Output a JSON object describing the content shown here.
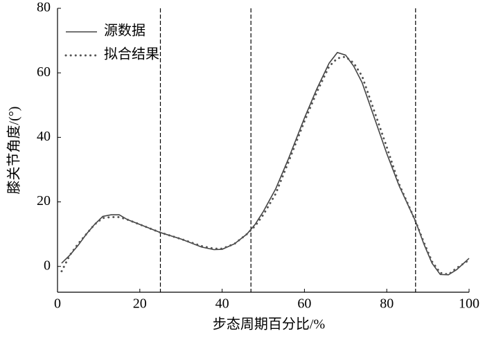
{
  "chart_data": {
    "type": "line",
    "xlabel": "步态周期百分比/%",
    "ylabel": "膝关节角度/(°)",
    "x": [
      1,
      3,
      5,
      7,
      9,
      11,
      13,
      15,
      17,
      20,
      25,
      30,
      35,
      38,
      40,
      43,
      46,
      48,
      50,
      53,
      56,
      60,
      63,
      66,
      68,
      70,
      72,
      74,
      77,
      80,
      83,
      87,
      89,
      91,
      93,
      95,
      97,
      100
    ],
    "series": [
      {
        "name": "源数据",
        "color": "#444444",
        "style": "solid",
        "values": [
          1,
          3.5,
          6.5,
          10,
          13,
          15.5,
          16,
          16,
          14.5,
          13,
          10.5,
          8.5,
          6,
          5.2,
          5.3,
          7,
          10,
          13,
          17,
          24,
          33,
          46,
          55,
          63,
          66.3,
          65.5,
          62,
          57,
          46,
          35,
          25,
          14,
          7,
          1,
          -2.5,
          -2.6,
          -1,
          2.5
        ]
      },
      {
        "name": "拟合结果",
        "color": "#555555",
        "style": "dotted",
        "values": [
          -1.5,
          3.5,
          7,
          10,
          13,
          15,
          15.3,
          15.3,
          14.5,
          13,
          10.5,
          8.5,
          6.3,
          5.5,
          5.5,
          7,
          10,
          12.5,
          16,
          22.5,
          32,
          45,
          54,
          62,
          64.5,
          65,
          63,
          59,
          48,
          37,
          25.5,
          14,
          7.5,
          1.5,
          -2,
          -2.5,
          -0.5,
          2
        ]
      }
    ],
    "vlines": [
      25,
      47,
      87
    ],
    "xlim": [
      0,
      100
    ],
    "xticks": [
      0,
      20,
      40,
      60,
      80,
      100
    ],
    "ylim": [
      -8,
      80
    ],
    "yticks": [
      0,
      20,
      40,
      60,
      80
    ],
    "legend": "upper-left"
  }
}
